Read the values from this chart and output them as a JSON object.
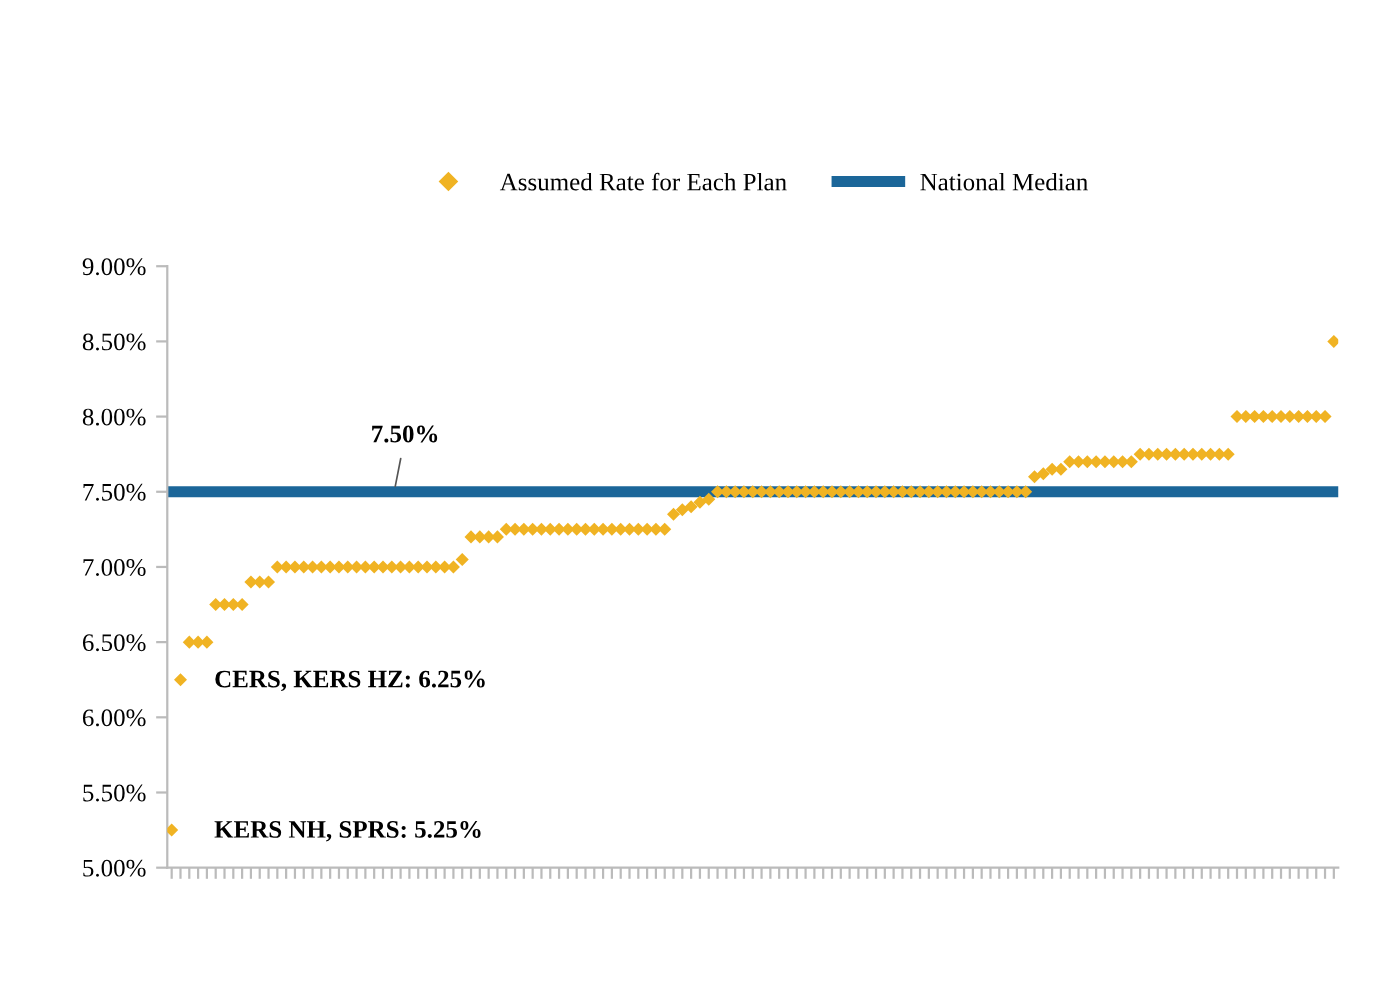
{
  "chart_data": {
    "type": "scatter",
    "categories": [
      null,
      null,
      null,
      null,
      null,
      null,
      null,
      null,
      null,
      null,
      null,
      null,
      null,
      null,
      null,
      null,
      null,
      null,
      null,
      null,
      null,
      null,
      null,
      null,
      null,
      null,
      null,
      null,
      null,
      null,
      null,
      null,
      null,
      null,
      null,
      null,
      null,
      null,
      null,
      null,
      null,
      null,
      null,
      null,
      null,
      null,
      null,
      null,
      null,
      null,
      null,
      null,
      null,
      null,
      null,
      null,
      null,
      null,
      null,
      null,
      null,
      null,
      null,
      null,
      null,
      null,
      null,
      null,
      null,
      null,
      null,
      null,
      null,
      null,
      null,
      null,
      null,
      null,
      null,
      null,
      null,
      null,
      null,
      null,
      null,
      null,
      null,
      null,
      null,
      null,
      null,
      null,
      null,
      null,
      null,
      null,
      null,
      null,
      null,
      null,
      null,
      null,
      null,
      null,
      null,
      null,
      null,
      null,
      null,
      null,
      null,
      null,
      null,
      null,
      null,
      null,
      null,
      null,
      null,
      null,
      null,
      null,
      null,
      null,
      null,
      null,
      null,
      null,
      null,
      null,
      null,
      null,
      null
    ],
    "series": [
      {
        "name": "Assumed Rate for Each Plan",
        "color": "#f0b323",
        "values": [
          5.25,
          6.25,
          6.5,
          6.5,
          6.5,
          6.75,
          6.75,
          6.75,
          6.75,
          6.9,
          6.9,
          6.9,
          7.0,
          7.0,
          7.0,
          7.0,
          7.0,
          7.0,
          7.0,
          7.0,
          7.0,
          7.0,
          7.0,
          7.0,
          7.0,
          7.0,
          7.0,
          7.0,
          7.0,
          7.0,
          7.0,
          7.0,
          7.0,
          7.05,
          7.2,
          7.2,
          7.2,
          7.2,
          7.25,
          7.25,
          7.25,
          7.25,
          7.25,
          7.25,
          7.25,
          7.25,
          7.25,
          7.25,
          7.25,
          7.25,
          7.25,
          7.25,
          7.25,
          7.25,
          7.25,
          7.25,
          7.25,
          7.35,
          7.38,
          7.4,
          7.43,
          7.45,
          7.5,
          7.5,
          7.5,
          7.5,
          7.5,
          7.5,
          7.5,
          7.5,
          7.5,
          7.5,
          7.5,
          7.5,
          7.5,
          7.5,
          7.5,
          7.5,
          7.5,
          7.5,
          7.5,
          7.5,
          7.5,
          7.5,
          7.5,
          7.5,
          7.5,
          7.5,
          7.5,
          7.5,
          7.5,
          7.5,
          7.5,
          7.5,
          7.5,
          7.5,
          7.5,
          7.5,
          7.6,
          7.62,
          7.65,
          7.65,
          7.7,
          7.7,
          7.7,
          7.7,
          7.7,
          7.7,
          7.7,
          7.7,
          7.75,
          7.75,
          7.75,
          7.75,
          7.75,
          7.75,
          7.75,
          7.75,
          7.75,
          7.75,
          7.75,
          8.0,
          8.0,
          8.0,
          8.0,
          8.0,
          8.0,
          8.0,
          8.0,
          8.0,
          8.0,
          8.0,
          8.5
        ]
      }
    ],
    "ref_lines": [
      {
        "axis": "y",
        "value": 7.5,
        "label": "National Median",
        "color": "#1b6699"
      }
    ],
    "annotations": [
      {
        "text": "7.50%",
        "y": 7.5
      },
      "CERS, KERS HZ: 6.25%",
      "KERS NH, SPRS: 5.25%"
    ],
    "ylim": [
      5.0,
      9.0
    ],
    "yticks": [
      {
        "value": 5.0,
        "label": "5.00%"
      },
      {
        "value": 5.5,
        "label": "5.50%"
      },
      {
        "value": 6.0,
        "label": "6.00%"
      },
      {
        "value": 6.5,
        "label": "6.50%"
      },
      {
        "value": 7.0,
        "label": "7.00%"
      },
      {
        "value": 7.5,
        "label": "7.50%"
      },
      {
        "value": 8.0,
        "label": "8.00%"
      },
      {
        "value": 8.5,
        "label": "8.50%"
      },
      {
        "value": 9.0,
        "label": "9.00%"
      }
    ],
    "marker": "diamond",
    "grid": false,
    "legend": "top",
    "tick_labels": "y"
  }
}
